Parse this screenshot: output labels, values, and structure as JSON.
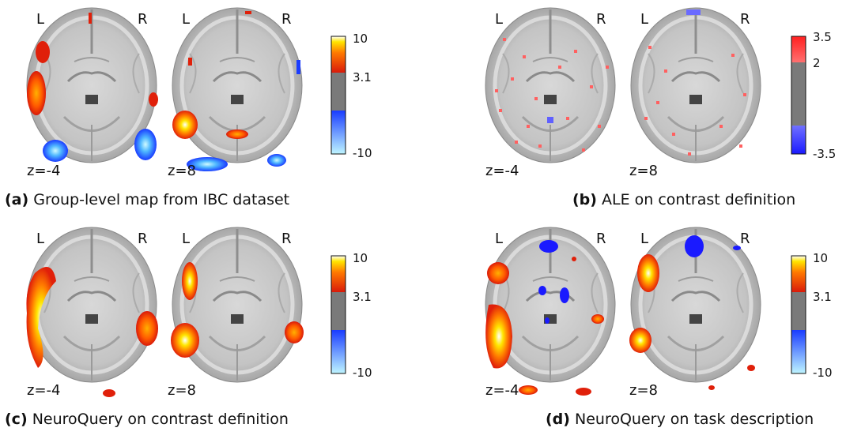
{
  "colors": {
    "hot_low": "#d91a0a",
    "hot_mid": "#ff5a00",
    "hot_high": "#ffe600",
    "hot_max": "#ffffff",
    "cold_low": "#1a4cff",
    "cold_high": "#7fe8ff",
    "blue_pure": "#1a1aff",
    "red_light": "#ff6060",
    "gray_mid": "#7a7a7a"
  },
  "hemisphere_labels": {
    "left": "L",
    "right": "R"
  },
  "panels": [
    {
      "id": "a",
      "caption_tag": "(a)",
      "caption_text": "Group-level map from IBC dataset",
      "slices": [
        "z=-4",
        "z=8"
      ],
      "colorbar": {
        "type": "diverging-hot-cold",
        "ticks": [
          "10",
          "3.1",
          "-10"
        ]
      }
    },
    {
      "id": "b",
      "caption_tag": "(b)",
      "caption_text": "ALE on contrast definition",
      "slices": [
        "z=-4",
        "z=8"
      ],
      "colorbar": {
        "type": "red-gray-blue",
        "ticks": [
          "3.5",
          "2",
          "-3.5"
        ]
      }
    },
    {
      "id": "c",
      "caption_tag": "(c)",
      "caption_text": "NeuroQuery on contrast definition",
      "slices": [
        "z=-4",
        "z=8"
      ],
      "colorbar": {
        "type": "diverging-hot-cold",
        "ticks": [
          "10",
          "3.1",
          "-10"
        ]
      }
    },
    {
      "id": "d",
      "caption_tag": "(d)",
      "caption_text": "NeuroQuery on task description",
      "slices": [
        "z=-4",
        "z=8"
      ],
      "colorbar": {
        "type": "diverging-hot-cold",
        "ticks": [
          "10",
          "3.1",
          "-10"
        ]
      }
    }
  ]
}
